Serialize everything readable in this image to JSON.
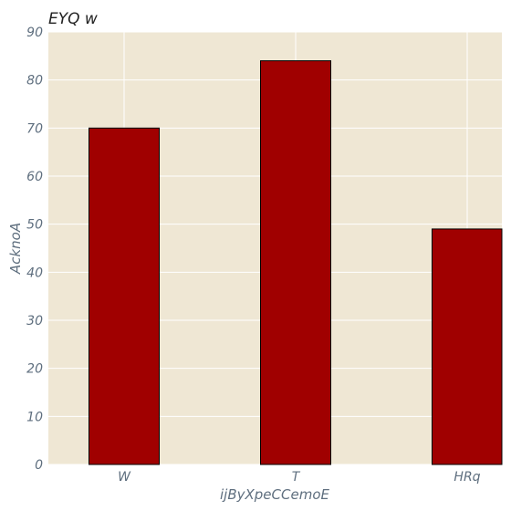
{
  "chart_data": {
    "type": "bar",
    "title": "EYQ w",
    "xlabel": "ijByXpeCCemoE",
    "ylabel": "AcknoA",
    "categories": [
      "W",
      "T",
      "HRq"
    ],
    "values": [
      70,
      84,
      49
    ],
    "ylim": [
      0,
      90
    ],
    "yticks": [
      0,
      10,
      20,
      30,
      40,
      50,
      60,
      70,
      80,
      90
    ],
    "grid": true,
    "legend": "none",
    "colors": {
      "bar": "#a00000",
      "bar_edge": "#000000",
      "plot_background": "#efe7d4",
      "grid": "#ffffff"
    }
  }
}
